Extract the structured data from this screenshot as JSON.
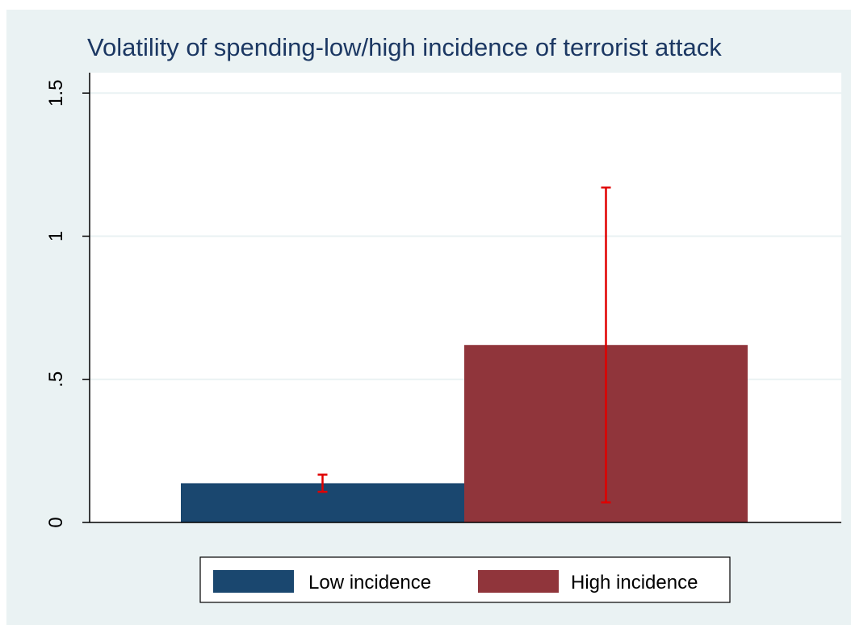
{
  "chart_data": {
    "type": "bar",
    "title": "Volatility of spending-low/high incidence of terrorist attack",
    "xlabel": "",
    "ylabel": "",
    "ylim": [
      0,
      1.6
    ],
    "yticks": [
      {
        "value": 0,
        "label": "0"
      },
      {
        "value": 0.5,
        "label": ".5"
      },
      {
        "value": 1,
        "label": "1"
      },
      {
        "value": 1.5,
        "label": "1.5"
      }
    ],
    "grid": true,
    "legend_position": "bottom",
    "series": [
      {
        "name": "Low incidence",
        "value": 0.137,
        "ci_low": 0.107,
        "ci_high": 0.167,
        "color": "#1a476f"
      },
      {
        "name": "High incidence",
        "value": 0.62,
        "ci_low": 0.07,
        "ci_high": 1.17,
        "color": "#90353b"
      }
    ],
    "error_bar_color": "#e00000"
  }
}
